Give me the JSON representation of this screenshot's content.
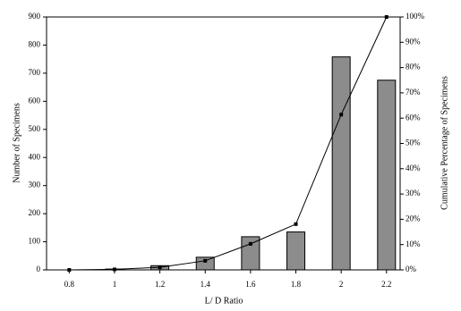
{
  "chart_data": {
    "type": "bar_line",
    "x_label": "L/ D Ratio",
    "y_label": "Number of Specimens",
    "y2_label": "Cumulative Percentage of Specimens",
    "categories": [
      "0.8",
      "1",
      "1.2",
      "1.4",
      "1.6",
      "1.8",
      "2",
      "2.2"
    ],
    "series": [
      {
        "name": "Number of Specimens",
        "type": "bar",
        "color": "#8c8c8c",
        "values": [
          0,
          3,
          15,
          45,
          118,
          135,
          758,
          675
        ]
      },
      {
        "name": "Cumulative Percentage",
        "type": "line",
        "axis": "y2",
        "color": "#000000",
        "values": [
          0,
          0.2,
          1,
          3.6,
          10.3,
          18.1,
          61.4,
          100
        ]
      }
    ],
    "ylim": [
      0,
      900
    ],
    "yticks": [
      0,
      100,
      200,
      300,
      400,
      500,
      600,
      700,
      800,
      900
    ],
    "y2lim": [
      0,
      100
    ],
    "y2ticks": [
      {
        "value": 0,
        "label": "0%"
      },
      {
        "value": 10,
        "label": "10%"
      },
      {
        "value": 20,
        "label": "20%"
      },
      {
        "value": 30,
        "label": "30%"
      },
      {
        "value": 40,
        "label": "40%"
      },
      {
        "value": 50,
        "label": "50%"
      },
      {
        "value": 60,
        "label": "60%"
      },
      {
        "value": 70,
        "label": "70%"
      },
      {
        "value": 80,
        "label": "80%"
      },
      {
        "value": 90,
        "label": "90%"
      },
      {
        "value": 100,
        "label": "100%"
      }
    ],
    "grid": false
  }
}
